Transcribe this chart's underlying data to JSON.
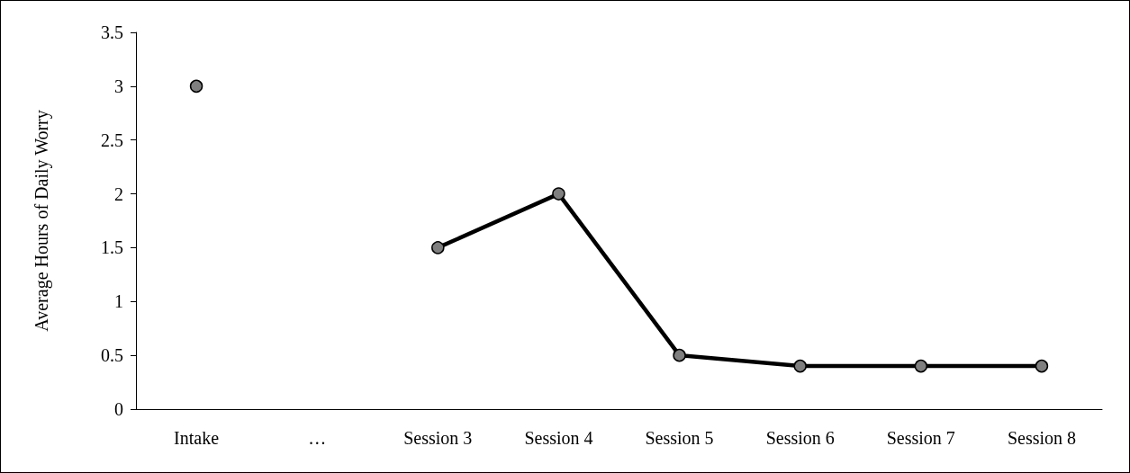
{
  "chart_data": {
    "type": "line",
    "ylabel": "Average Hours of Daily Worry",
    "categories": [
      "Intake",
      "…",
      "Session 3",
      "Session 4",
      "Session 5",
      "Session 6",
      "Session 7",
      "Session 8"
    ],
    "series": [
      {
        "color": "#000000",
        "values": [
          3,
          null,
          1.5,
          2,
          0.5,
          0.4,
          0.4,
          0.4
        ]
      }
    ],
    "ylim": [
      0,
      3.5
    ],
    "yticks": [
      0,
      0.5,
      1,
      1.5,
      2,
      2.5,
      3,
      3.5
    ],
    "grid": false,
    "marker": "circle",
    "line_style": "solid"
  }
}
